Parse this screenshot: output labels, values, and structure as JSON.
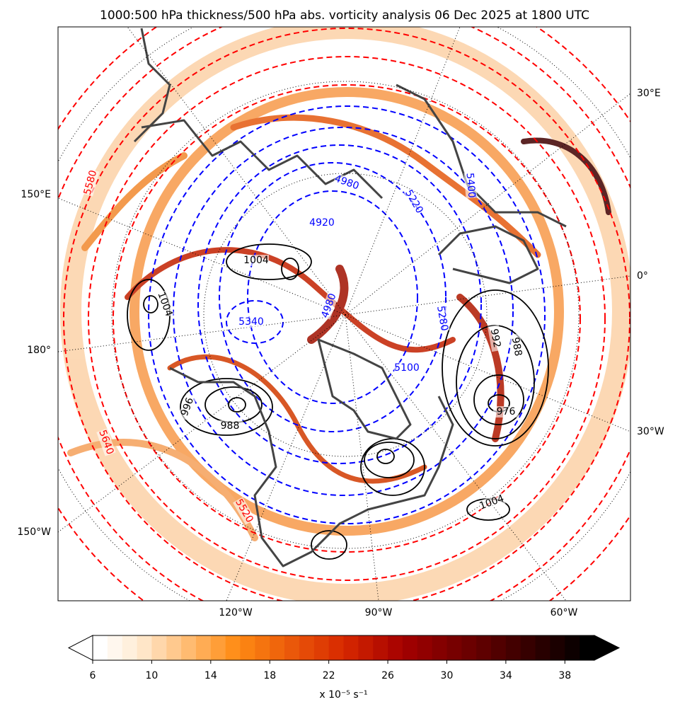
{
  "title": "1000:500 hPa thickness/500 hPa abs. vorticity analysis 06 Dec 2025 at 1800 UTC",
  "map": {
    "lon_labels": [
      "30°E",
      "150°E",
      "0°",
      "180°",
      "30°W",
      "150°W",
      "120°W",
      "90°W",
      "60°W"
    ],
    "thickness_warm": {
      "color": "#ff0000",
      "labels": [
        "5580",
        "5640",
        "5520"
      ]
    },
    "thickness_cold": {
      "color": "#0000ff",
      "labels": [
        "4980",
        "4920",
        "4980",
        "5220",
        "5400",
        "5340",
        "5100",
        "5280"
      ]
    },
    "pressure": {
      "color": "#000000",
      "labels": [
        "1004",
        "1004",
        "996",
        "988",
        "1004",
        "992",
        "988",
        "976"
      ]
    }
  },
  "colorbar": {
    "range": [
      6,
      40
    ],
    "ticks": [
      6,
      10,
      14,
      18,
      22,
      26,
      30,
      34,
      38
    ],
    "label": "x 10⁻⁵ s⁻¹"
  }
}
